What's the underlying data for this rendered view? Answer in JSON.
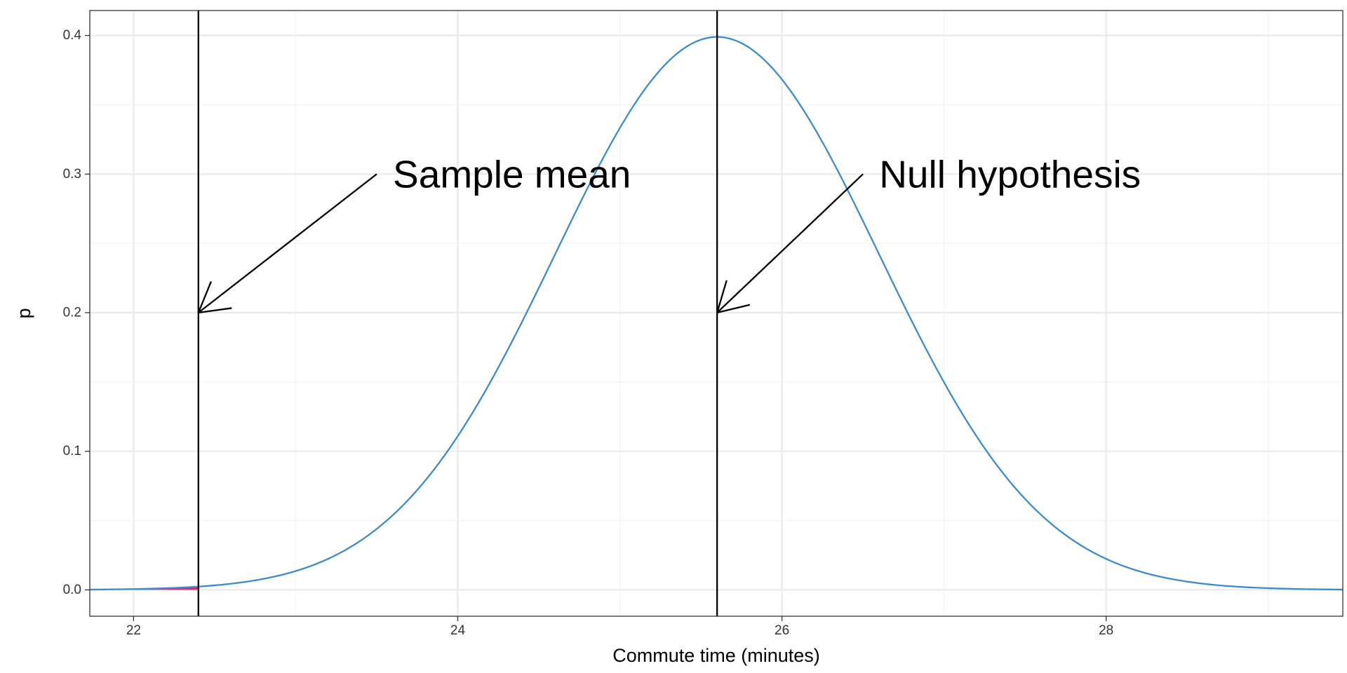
{
  "chart_data": {
    "type": "line",
    "xlabel": "Commute time (minutes)",
    "ylabel": "p",
    "xlim": [
      21.73,
      29.46
    ],
    "ylim": [
      -0.019,
      0.418
    ],
    "x_ticks": [
      22,
      24,
      26,
      28
    ],
    "x_minor_ticks": [
      23,
      25,
      27,
      29
    ],
    "y_ticks": [
      0.0,
      0.1,
      0.2,
      0.3,
      0.4
    ],
    "y_minor_ticks": [
      0.05,
      0.15,
      0.25,
      0.35
    ],
    "x_tick_labels": [
      "22",
      "24",
      "26",
      "28"
    ],
    "y_tick_labels": [
      "0.0",
      "0.1",
      "0.2",
      "0.3",
      "0.4"
    ],
    "grid": true,
    "series": [
      {
        "type": "normal-density",
        "mean": 25.6,
        "sd": 1.0,
        "x_range": [
          21.73,
          29.46
        ],
        "color": "#3b8bd0"
      }
    ],
    "shaded_tail": {
      "from": 21.73,
      "to": 22.4,
      "color": "#e8295f"
    },
    "vlines": [
      {
        "x": 22.4,
        "color": "#000000"
      },
      {
        "x": 25.6,
        "color": "#000000"
      }
    ],
    "annotations": [
      {
        "text": "Sample mean",
        "arrow_from": {
          "x": 23.5,
          "y": 0.3
        },
        "arrow_to": {
          "x": 22.4,
          "y": 0.2
        },
        "text_at": {
          "x": 23.6,
          "y": 0.3
        }
      },
      {
        "text": "Null hypothesis",
        "arrow_from": {
          "x": 26.5,
          "y": 0.3
        },
        "arrow_to": {
          "x": 25.6,
          "y": 0.2
        },
        "text_at": {
          "x": 26.6,
          "y": 0.3
        }
      }
    ]
  },
  "colors": {
    "panel_border": "#333333",
    "grid_major": "#ebebeb",
    "grid_minor": "#f4f4f4",
    "curve": "#3b8bd0",
    "tail": "#e8295f"
  }
}
